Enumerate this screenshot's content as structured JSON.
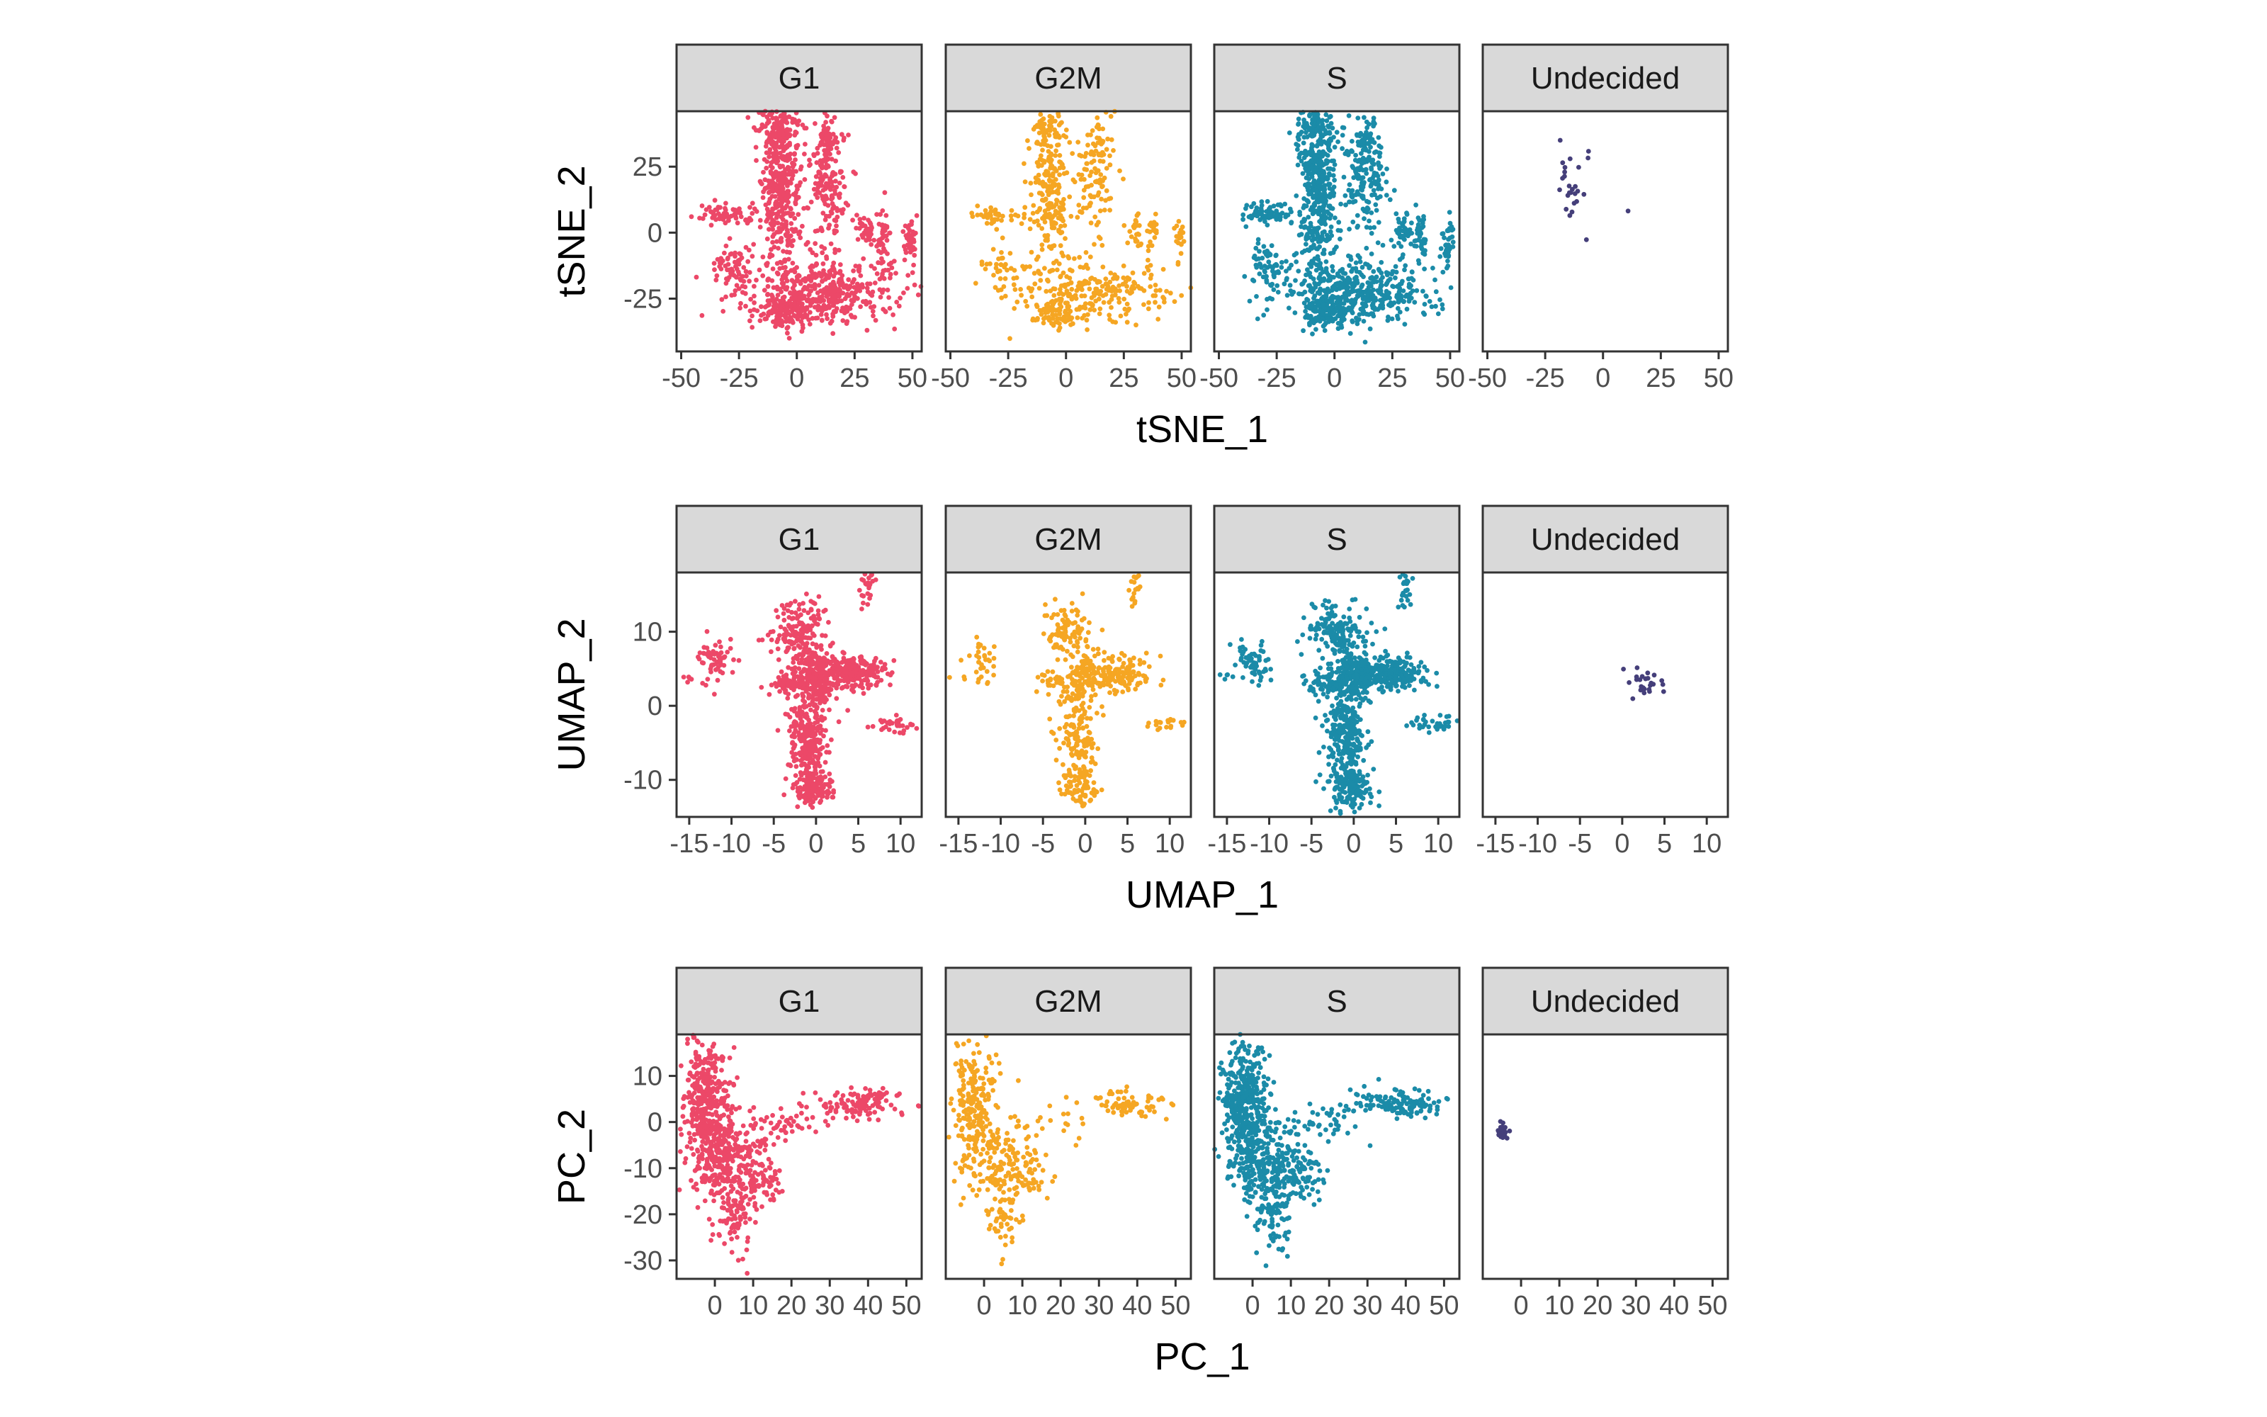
{
  "colors": {
    "G1": "#EC4868",
    "G2M": "#F5A623",
    "S": "#1B8BA8",
    "Undecided": "#453F7A",
    "strip_fill": "#D9D9D9",
    "panel_border": "#333333"
  },
  "chart_data": [
    {
      "type": "scatter",
      "facets": [
        "G1",
        "G2M",
        "S",
        "Undecided"
      ],
      "xlabel": "tSNE_1",
      "ylabel": "tSNE_2",
      "xlim": [
        -52,
        54
      ],
      "ylim": [
        -45,
        46
      ],
      "xticks": [
        -50,
        -25,
        0,
        25,
        50
      ],
      "xtick_labels": [
        "-50",
        "-25",
        "0",
        "25",
        "50"
      ],
      "yticks": [
        -25,
        0,
        25
      ],
      "ytick_labels": [
        "-25",
        "0",
        "25"
      ],
      "grid": false,
      "legend": "none",
      "clusters": [
        {
          "facets": [
            "G1",
            "G2M",
            "S"
          ],
          "cx": -7,
          "cy": 18,
          "sx": 4,
          "sy": 16,
          "n": 420
        },
        {
          "facets": [
            "G1",
            "G2M",
            "S"
          ],
          "cx": -9,
          "cy": 40,
          "sx": 4,
          "sy": 3,
          "n": 60
        },
        {
          "facets": [
            "G1",
            "G2M",
            "S"
          ],
          "cx": 13,
          "cy": 20,
          "sx": 5,
          "sy": 12,
          "n": 170
        },
        {
          "facets": [
            "G1",
            "G2M",
            "S"
          ],
          "cx": 14,
          "cy": 36,
          "sx": 2,
          "sy": 4,
          "n": 40
        },
        {
          "facets": [
            "G1",
            "G2M",
            "S"
          ],
          "cx": 12,
          "cy": -22,
          "sx": 16,
          "sy": 6,
          "n": 420
        },
        {
          "facets": [
            "G1",
            "G2M",
            "S"
          ],
          "cx": -4,
          "cy": -30,
          "sx": 5,
          "sy": 3,
          "n": 120
        },
        {
          "facets": [
            "G1",
            "G2M",
            "S"
          ],
          "cx": -30,
          "cy": 7,
          "sx": 7,
          "sy": 2,
          "n": 70
        },
        {
          "facets": [
            "G1",
            "G2M",
            "S"
          ],
          "cx": -28,
          "cy": -13,
          "sx": 4,
          "sy": 5,
          "n": 70
        },
        {
          "facets": [
            "G1",
            "G2M",
            "S"
          ],
          "cx": 30,
          "cy": 1,
          "sx": 2,
          "sy": 3,
          "n": 40
        },
        {
          "facets": [
            "G1",
            "G2M",
            "S"
          ],
          "cx": 37,
          "cy": -2,
          "sx": 1.5,
          "sy": 5,
          "n": 40
        },
        {
          "facets": [
            "G1",
            "G2M",
            "S"
          ],
          "cx": 49,
          "cy": -3,
          "sx": 1.5,
          "sy": 5,
          "n": 40
        },
        {
          "facets": [
            "Undecided"
          ],
          "cx": -14,
          "cy": 16,
          "sx": 3.5,
          "sy": 9,
          "n": 26
        },
        {
          "facets": [
            "Undecided"
          ],
          "cx": 11,
          "cy": 9,
          "sx": 0.5,
          "sy": 0.5,
          "n": 1
        }
      ]
    },
    {
      "type": "scatter",
      "facets": [
        "G1",
        "G2M",
        "S",
        "Undecided"
      ],
      "xlabel": "UMAP_1",
      "ylabel": "UMAP_2",
      "xlim": [
        -16.5,
        12.5
      ],
      "ylim": [
        -15,
        18
      ],
      "xticks": [
        -15,
        -10,
        -5,
        0,
        5,
        10
      ],
      "xtick_labels": [
        "-15",
        "-10",
        "-5",
        "0",
        "5",
        "10"
      ],
      "yticks": [
        -10,
        0,
        10
      ],
      "ytick_labels": [
        "-10",
        "0",
        "10"
      ],
      "grid": false,
      "legend": "none",
      "clusters": [
        {
          "facets": [
            "G1",
            "G2M",
            "S"
          ],
          "cx": -2,
          "cy": 10,
          "sx": 1.5,
          "sy": 2,
          "n": 160
        },
        {
          "facets": [
            "G1",
            "G2M",
            "S"
          ],
          "cx": 0,
          "cy": 4,
          "sx": 1.2,
          "sy": 2,
          "n": 160
        },
        {
          "facets": [
            "G1",
            "G2M",
            "S"
          ],
          "cx": 4,
          "cy": 4.5,
          "sx": 2.2,
          "sy": 1.2,
          "n": 240
        },
        {
          "facets": [
            "G1",
            "G2M",
            "S"
          ],
          "cx": -2.5,
          "cy": 3,
          "sx": 1.6,
          "sy": 0.8,
          "n": 80
        },
        {
          "facets": [
            "G1",
            "G2M",
            "S"
          ],
          "cx": -1,
          "cy": -4,
          "sx": 1.2,
          "sy": 2.8,
          "n": 240
        },
        {
          "facets": [
            "G1",
            "G2M",
            "S"
          ],
          "cx": -0.5,
          "cy": -11,
          "sx": 1.2,
          "sy": 1.4,
          "n": 150
        },
        {
          "facets": [
            "G1",
            "G2M",
            "S"
          ],
          "cx": -12,
          "cy": 6,
          "sx": 1,
          "sy": 1.5,
          "n": 60
        },
        {
          "facets": [
            "G1",
            "G2M",
            "S"
          ],
          "cx": 6,
          "cy": 16,
          "sx": 0.4,
          "sy": 1.5,
          "n": 30
        },
        {
          "facets": [
            "G1",
            "G2M",
            "S"
          ],
          "cx": 9.5,
          "cy": -2.5,
          "sx": 1.4,
          "sy": 0.5,
          "n": 35
        },
        {
          "facets": [
            "G1",
            "G2M",
            "S"
          ],
          "cx": -15,
          "cy": 4,
          "sx": 0.4,
          "sy": 0.4,
          "n": 5
        },
        {
          "facets": [
            "Undecided"
          ],
          "cx": 2.5,
          "cy": 3,
          "sx": 1.2,
          "sy": 0.9,
          "n": 26
        }
      ]
    },
    {
      "type": "scatter",
      "facets": [
        "G1",
        "G2M",
        "S",
        "Undecided"
      ],
      "xlabel": "PC_1",
      "ylabel": "PC_2",
      "xlim": [
        -10,
        54
      ],
      "ylim": [
        -34,
        19
      ],
      "xticks": [
        0,
        10,
        20,
        30,
        40,
        50
      ],
      "xtick_labels": [
        "0",
        "10",
        "20",
        "30",
        "40",
        "50"
      ],
      "yticks": [
        -30,
        -20,
        -10,
        0,
        10
      ],
      "ytick_labels": [
        "-30",
        "-20",
        "-10",
        "0",
        "10"
      ],
      "grid": false,
      "legend": "none",
      "clusters": [
        {
          "facets": [
            "G1",
            "G2M",
            "S"
          ],
          "cx": -2,
          "cy": 4,
          "sx": 3,
          "sy": 7,
          "n": 380
        },
        {
          "facets": [
            "G1",
            "G2M",
            "S"
          ],
          "cx": 4,
          "cy": -8,
          "sx": 5,
          "sy": 5,
          "n": 260
        },
        {
          "facets": [
            "G1",
            "G2M",
            "S"
          ],
          "cx": 5,
          "cy": -20,
          "sx": 2.5,
          "sy": 5,
          "n": 90
        },
        {
          "facets": [
            "G1",
            "G2M",
            "S"
          ],
          "cx": 12,
          "cy": -12,
          "sx": 3,
          "sy": 3,
          "n": 60
        },
        {
          "facets": [
            "G1",
            "G2M",
            "S"
          ],
          "cx": 18,
          "cy": 0,
          "sx": 5,
          "sy": 2,
          "n": 40
        },
        {
          "facets": [
            "G1",
            "G2M",
            "S"
          ],
          "cx": 38,
          "cy": 4,
          "sx": 6,
          "sy": 1.6,
          "n": 120
        },
        {
          "facets": [
            "Undecided"
          ],
          "cx": -5,
          "cy": -2,
          "sx": 0.6,
          "sy": 0.8,
          "n": 26
        }
      ]
    }
  ]
}
